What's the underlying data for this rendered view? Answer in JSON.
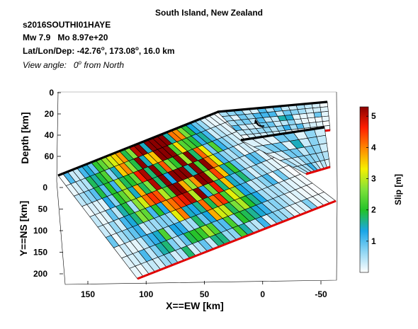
{
  "header": {
    "title": "South Island, New Zealand",
    "event_id": "s2016SOUTHI01HAYE",
    "mw": "Mw 7.9",
    "mo": "Mo 8.97e+20",
    "location_label": "Lat/Lon/Dep:",
    "lat": "-42.76",
    "lon": "173.08",
    "dep": "16.0 km",
    "degree_mark": "o",
    "view_label": "View angle:",
    "view_value": "0",
    "view_suffix": "from North"
  },
  "chart_data": {
    "type": "3d-fault-slip",
    "colormap": [
      "#ffffff",
      "#8fd6f4",
      "#1aa6e8",
      "#22c22a",
      "#7fe23a",
      "#f6f000",
      "#ff8800",
      "#ff1e00",
      "#8a0000"
    ],
    "colors": {
      "trace": "#000000",
      "bottom_edge": "#e00000",
      "grid": "#000000"
    },
    "axes": {
      "x": {
        "label": "X==EW [km]",
        "ticks": [
          "150",
          "100",
          "50",
          "0",
          "-50"
        ],
        "tick_values": [
          150,
          100,
          50,
          0,
          -50
        ],
        "range": [
          180,
          -60
        ]
      },
      "y": {
        "label": "Y==NS [km]",
        "ticks": [
          "0",
          "50",
          "100",
          "150",
          "200"
        ],
        "tick_values": [
          0,
          50,
          100,
          150,
          200
        ],
        "range": [
          -10,
          210
        ]
      },
      "z": {
        "label": "Depth [km]",
        "ticks": [
          "0",
          "20",
          "40",
          "60"
        ],
        "tick_values": [
          0,
          20,
          40,
          60
        ],
        "range": [
          0,
          70
        ]
      }
    },
    "colorbar": {
      "label": "Slip [m]",
      "ticks": [
        "1",
        "2",
        "3",
        "4",
        "5"
      ],
      "tick_values": [
        1,
        2,
        3,
        4,
        5
      ],
      "range": [
        0,
        5.3
      ]
    },
    "faults": [
      {
        "name": "",
        "rows": 10,
        "cols": 34,
        "hotspots": [
          {
            "row": 2,
            "col": 20,
            "radius": 3.0,
            "slip": 5.2
          },
          {
            "row": 2,
            "col": 12,
            "radius": 4.0,
            "slip": 2.8
          },
          {
            "row": 5,
            "col": 16,
            "radius": 5.0,
            "slip": 1.4
          }
        ]
      },
      {
        "name": "",
        "rows": 6,
        "cols": 14,
        "hotspots": [
          {
            "row": 1,
            "col": 5,
            "radius": 3.0,
            "slip": 1.1
          }
        ]
      },
      {
        "name": "",
        "rows": 5,
        "cols": 8,
        "hotspots": [
          {
            "row": 1,
            "col": 3,
            "radius": 3.0,
            "slip": 0.9
          }
        ]
      }
    ]
  }
}
